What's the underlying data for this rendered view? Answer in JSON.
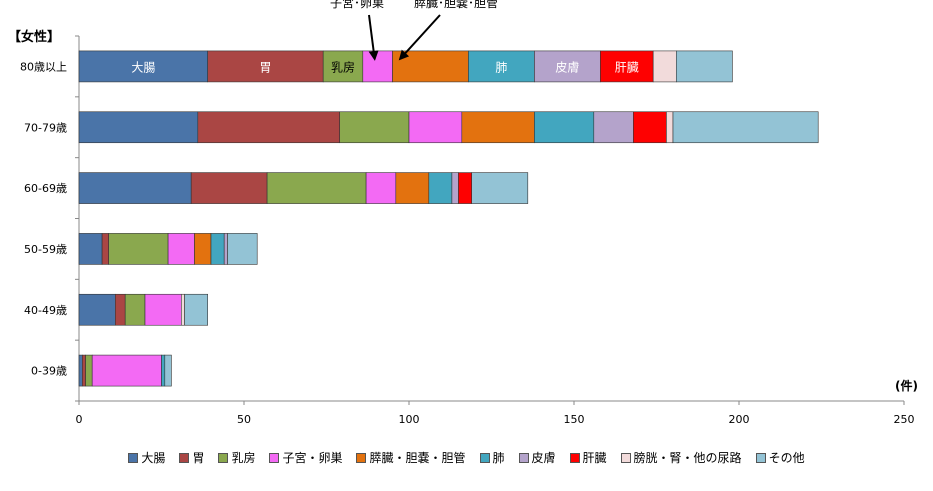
{
  "chart_data": {
    "type": "bar",
    "orientation": "horizontal",
    "stacked": true,
    "title": "【女性】",
    "xlabel": "(件)",
    "xlim": [
      0,
      250
    ],
    "xticks": [
      "0",
      "50",
      "100",
      "150",
      "200",
      "250"
    ],
    "grid": false,
    "legend_position": "bottom",
    "categories": [
      "80歳以上",
      "70-79歳",
      "60-69歳",
      "50-59歳",
      "40-49歳",
      "0-39歳"
    ],
    "series": [
      {
        "name": "大腸",
        "color": "#4a74a8",
        "values": [
          39,
          36,
          34,
          7,
          11,
          1
        ]
      },
      {
        "name": "胃",
        "color": "#aa4644",
        "values": [
          35,
          43,
          23,
          2,
          3,
          1
        ]
      },
      {
        "name": "乳房",
        "color": "#8aa84e",
        "values": [
          12,
          21,
          30,
          18,
          6,
          2
        ]
      },
      {
        "name": "子宮・卵巣",
        "color": "#f36af4",
        "values": [
          9,
          16,
          9,
          8,
          11,
          21
        ]
      },
      {
        "name": "膵臓・胆嚢・胆管",
        "color": "#e3720f",
        "values": [
          23,
          22,
          10,
          5,
          0,
          0
        ]
      },
      {
        "name": "肺",
        "color": "#42a6bf",
        "values": [
          20,
          18,
          7,
          4,
          0,
          1
        ]
      },
      {
        "name": "皮膚",
        "color": "#b4a3cb",
        "values": [
          20,
          12,
          2,
          1,
          0,
          0
        ]
      },
      {
        "name": "肝臓",
        "color": "#fe0101",
        "values": [
          16,
          10,
          4,
          0,
          0,
          0
        ]
      },
      {
        "name": "膀胱・腎・他の尿路",
        "color": "#f2dbdb",
        "values": [
          7,
          2,
          0,
          0,
          1,
          0
        ]
      },
      {
        "name": "その他",
        "color": "#93c3d5",
        "values": [
          17,
          44,
          17,
          9,
          7,
          2
        ]
      }
    ],
    "segment_labels": [
      {
        "category": "80歳以上",
        "series": "大腸",
        "text": "大腸"
      },
      {
        "category": "80歳以上",
        "series": "胃",
        "text": "胃"
      },
      {
        "category": "80歳以上",
        "series": "乳房",
        "text": "乳房"
      },
      {
        "category": "80歳以上",
        "series": "肺",
        "text": "肺"
      },
      {
        "category": "80歳以上",
        "series": "皮膚",
        "text": "皮膚"
      },
      {
        "category": "80歳以上",
        "series": "肝臓",
        "text": "肝臓"
      }
    ],
    "annotations": [
      {
        "text": "子宮･卵巣",
        "points_to": "子宮・卵巣"
      },
      {
        "text": "膵臓･胆嚢･胆管",
        "points_to": "膵臓・胆嚢・胆管"
      }
    ]
  }
}
